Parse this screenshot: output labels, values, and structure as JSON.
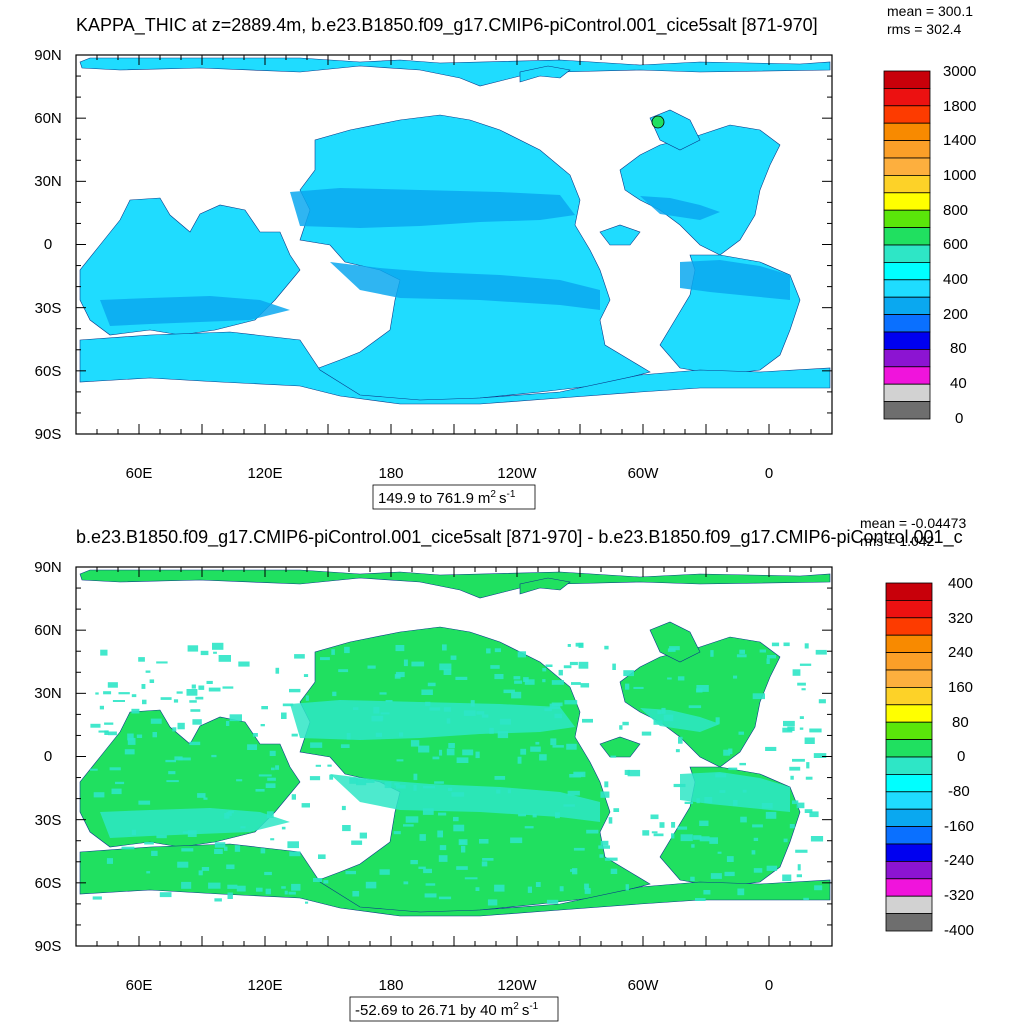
{
  "panels": [
    {
      "title": "KAPPA_THIC at z=2889.4m, b.e23.B1850.f09_g17.CMIP6-piControl.001_cice5salt [871-970]",
      "stats": {
        "mean": "mean = 300.1",
        "rms": "rms = 302.4"
      },
      "range_text": "149.9 to 761.9",
      "units": {
        "base": "m",
        "exp1": "2",
        "mid": "s",
        "exp2": "-1"
      },
      "colorbar": {
        "labels": [
          "3000",
          "1800",
          "1400",
          "1000",
          "800",
          "600",
          "400",
          "200",
          "80",
          "40",
          "0"
        ],
        "colors": [
          "#c8000a",
          "#ec1111",
          "#fd3b00",
          "#f88a00",
          "#fb9f28",
          "#fdaf3e",
          "#fdd228",
          "#ffff00",
          "#5ae60a",
          "#20e060",
          "#2ee6c6",
          "#00ffff",
          "#1fdcff",
          "#0aa8f0",
          "#0a70ff",
          "#0000f0",
          "#8c14d2",
          "#f014dc",
          "#d2d2d2",
          "#6e6e6e"
        ]
      },
      "ocean": {
        "main": "#1fdcff",
        "second": "#0aa8f0",
        "spot": "#20e060"
      }
    },
    {
      "title": "b.e23.B1850.f09_g17.CMIP6-piControl.001_cice5salt [871-970] - b.e23.B1850.f09_g17.CMIP6-piControl.001_c",
      "stats": {
        "mean": "mean = -0.04473",
        "rms": "rms = 1.042"
      },
      "range_text": "-52.69 to 26.71 by 40",
      "units": {
        "base": "m",
        "exp1": "2",
        "mid": "s",
        "exp2": "-1"
      },
      "colorbar": {
        "labels": [
          "400",
          "320",
          "240",
          "160",
          "80",
          "0",
          "-80",
          "-160",
          "-240",
          "-320",
          "-400"
        ],
        "colors": [
          "#c8000a",
          "#ec1111",
          "#fd3b00",
          "#f88a00",
          "#fb9f28",
          "#fdaf3e",
          "#fdd228",
          "#ffff00",
          "#5ae60a",
          "#20e060",
          "#2ee6c6",
          "#00ffff",
          "#1fdcff",
          "#0aa8f0",
          "#0a70ff",
          "#0000f0",
          "#8c14d2",
          "#f014dc",
          "#d2d2d2",
          "#6e6e6e"
        ]
      },
      "ocean": {
        "main": "#20e060",
        "second": "#2ee6c6",
        "spot": "#00ffff"
      }
    }
  ],
  "axes": {
    "lat_labels": [
      "90N",
      "60N",
      "30N",
      "0",
      "30S",
      "60S",
      "90S"
    ],
    "lon_labels": [
      "60E",
      "120E",
      "180",
      "120W",
      "60W",
      "0"
    ]
  },
  "chart_data": {
    "type": "heatmap",
    "projection": "cylindrical-equidistant",
    "lon_range": [
      30,
      390
    ],
    "lat_range": [
      -90,
      90
    ],
    "panels": [
      {
        "variable": "KAPPA_THIC",
        "depth_m": 2889.4,
        "min": 149.9,
        "max": 761.9,
        "mean": 300.1,
        "rms": 302.4,
        "levels": [
          0,
          40,
          80,
          200,
          400,
          600,
          800,
          1000,
          1400,
          1800,
          3000
        ]
      },
      {
        "variable": "difference",
        "min": -52.69,
        "max": 26.71,
        "interval": 40,
        "mean": -0.04473,
        "rms": 1.042,
        "levels": [
          -400,
          -320,
          -240,
          -160,
          -80,
          0,
          80,
          160,
          240,
          320,
          400
        ]
      }
    ]
  }
}
